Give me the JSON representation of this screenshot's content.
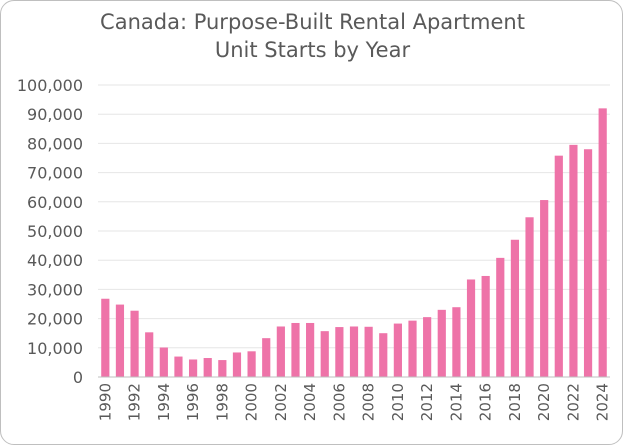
{
  "chart_data": {
    "type": "bar",
    "title_lines": [
      "Canada: Purpose-Built Rental Apartment",
      "Unit Starts by Year"
    ],
    "xlabel": "",
    "ylabel": "",
    "categories": [
      "1990",
      "1991",
      "1992",
      "1993",
      "1994",
      "1995",
      "1996",
      "1997",
      "1998",
      "1999",
      "2000",
      "2001",
      "2002",
      "2003",
      "2004",
      "2005",
      "2006",
      "2007",
      "2008",
      "2009",
      "2010",
      "2011",
      "2012",
      "2013",
      "2014",
      "2015",
      "2016",
      "2017",
      "2018",
      "2019",
      "2020",
      "2021",
      "2022",
      "2023",
      "2024"
    ],
    "x_tick_labels": [
      "1990",
      "",
      "1992",
      "",
      "1994",
      "",
      "1996",
      "",
      "1998",
      "",
      "2000",
      "",
      "2002",
      "",
      "2004",
      "",
      "2006",
      "",
      "2008",
      "",
      "2010",
      "",
      "2012",
      "",
      "2014",
      "",
      "2016",
      "",
      "2018",
      "",
      "2020",
      "",
      "2022",
      "",
      "2024"
    ],
    "values": [
      26800,
      24800,
      22700,
      15300,
      10100,
      7000,
      6000,
      6500,
      5800,
      8400,
      8800,
      13300,
      17300,
      18500,
      18500,
      15700,
      17100,
      17300,
      17200,
      15000,
      18300,
      19300,
      20500,
      23000,
      23900,
      33400,
      34600,
      40800,
      47000,
      54700,
      60600,
      75800,
      79500,
      78000,
      92000
    ],
    "ylim": [
      0,
      100000
    ],
    "yticks": [
      0,
      10000,
      20000,
      30000,
      40000,
      50000,
      60000,
      70000,
      80000,
      90000,
      100000
    ],
    "ytick_labels": [
      "0",
      "10,000",
      "20,000",
      "30,000",
      "40,000",
      "50,000",
      "60,000",
      "70,000",
      "80,000",
      "90,000",
      "100,000"
    ],
    "grid": true,
    "legend": "none",
    "bar_color": "#ee73a8",
    "grid_color": "#e6e6e6",
    "text_color": "#595959"
  }
}
